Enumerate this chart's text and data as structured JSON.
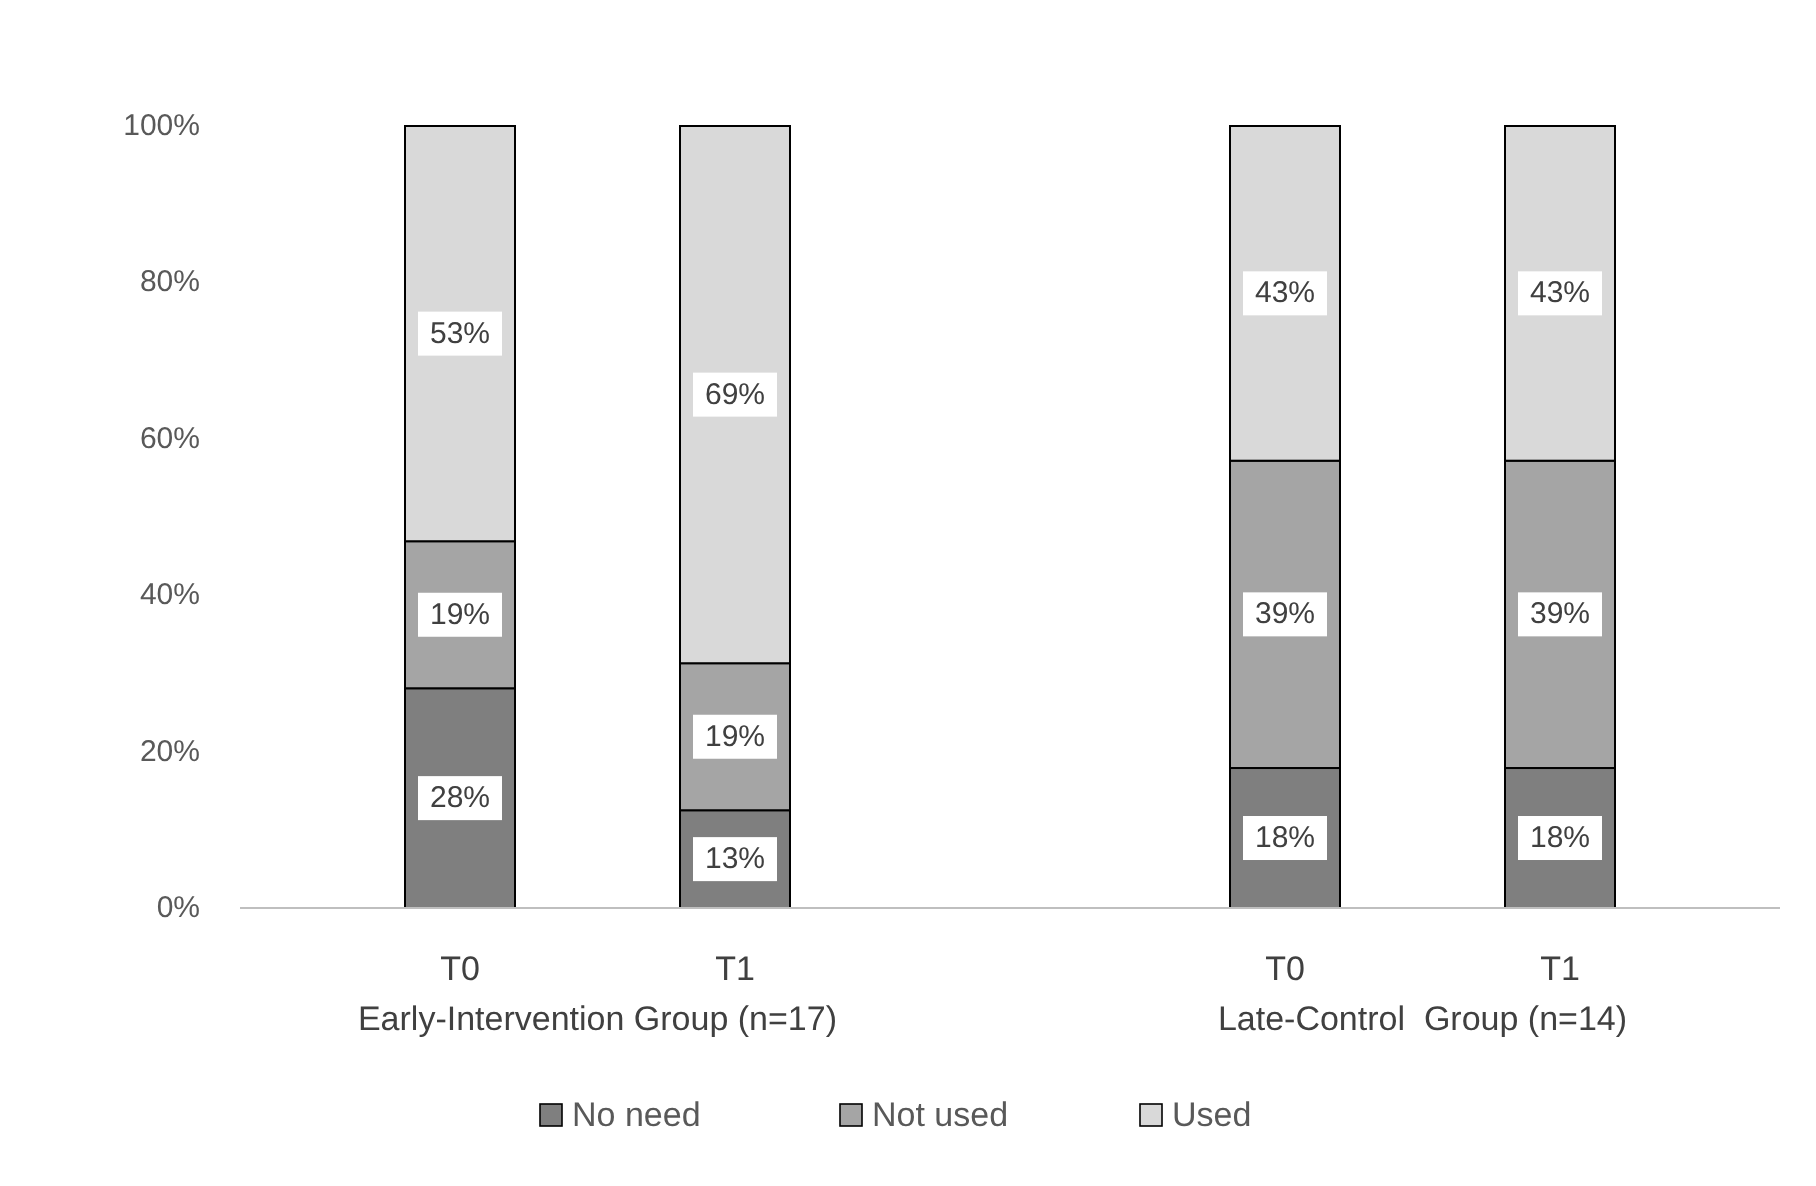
{
  "chart_data": {
    "type": "bar",
    "stacked": true,
    "categories": [
      "T0",
      "T1",
      null,
      "T0",
      "T1"
    ],
    "series": [
      {
        "name": "No need",
        "color": "#7f7f7f",
        "values": [
          28.1,
          12.5,
          null,
          17.9,
          17.9
        ],
        "value_labels": [
          "28%",
          "13%",
          null,
          "18%",
          "18%"
        ]
      },
      {
        "name": "Not used",
        "color": "#a5a5a5",
        "values": [
          18.8,
          18.8,
          null,
          39.3,
          39.3
        ],
        "value_labels": [
          "19%",
          "19%",
          null,
          "39%",
          "39%"
        ]
      },
      {
        "name": "Used",
        "color": "#d9d9d9",
        "values": [
          53.1,
          68.7,
          null,
          42.8,
          42.8
        ],
        "value_labels": [
          "53%",
          "69%",
          null,
          "43%",
          "43%"
        ]
      }
    ],
    "ylim": [
      0,
      100
    ],
    "yticks": [
      {
        "value": 0,
        "label": "0%"
      },
      {
        "value": 20,
        "label": "20%"
      },
      {
        "value": 40,
        "label": "40%"
      },
      {
        "value": 60,
        "label": "60%"
      },
      {
        "value": 80,
        "label": "80%"
      },
      {
        "value": 100,
        "label": "100%"
      }
    ],
    "annotations": [
      "Early-Intervention Group (n=17)",
      "Late-Control  Group (n=14)"
    ],
    "grid": false,
    "legend": "bottom"
  }
}
